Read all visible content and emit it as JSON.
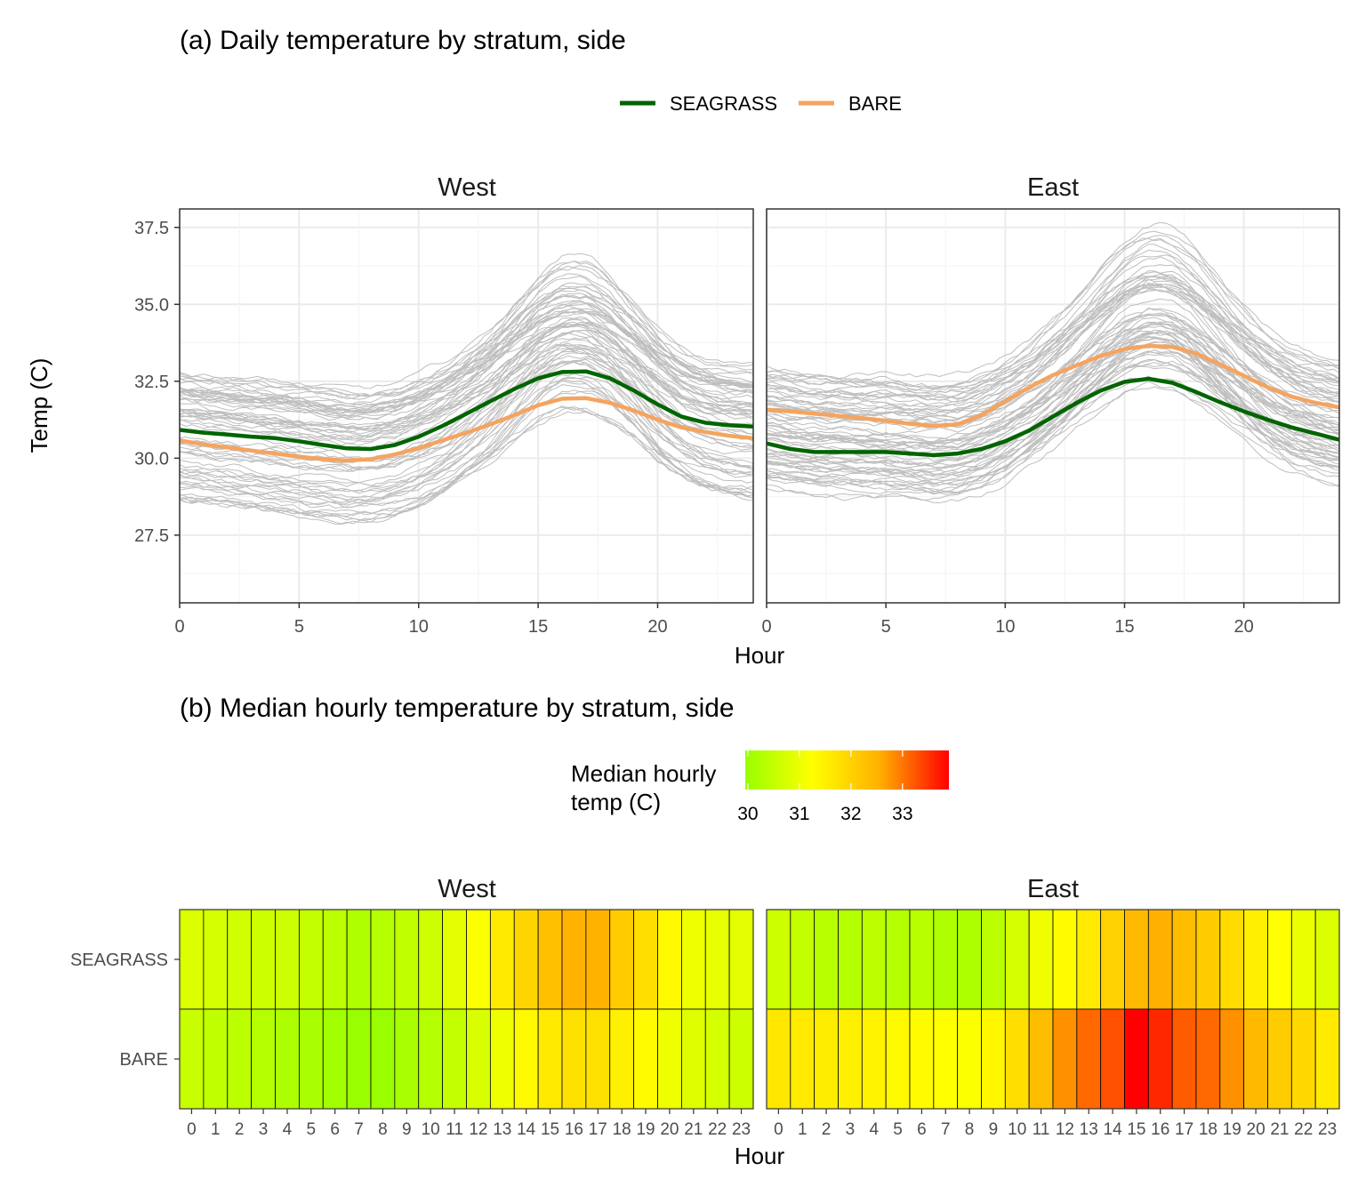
{
  "figure": {
    "panel_a_title": "(a) Daily temperature by stratum, side",
    "panel_b_title": "(b) Median hourly temperature by stratum, side"
  },
  "chart_data": [
    {
      "type": "line",
      "title": "(a) Daily temperature by stratum, side",
      "xlabel": "Hour",
      "ylabel": "Temp (C)",
      "xlim": [
        0,
        24
      ],
      "ylim": [
        25.3,
        38.1
      ],
      "x_ticks": [
        0,
        5,
        10,
        15,
        20
      ],
      "x_tick_labels": [
        "0",
        "5",
        "10",
        "15",
        "20"
      ],
      "y_ticks": [
        27.5,
        30.0,
        32.5,
        35.0,
        37.5
      ],
      "y_tick_labels": [
        "27.5",
        "30.0",
        "32.5",
        "35.0",
        "37.5"
      ],
      "grid": true,
      "legend_position": "top",
      "series_colors": {
        "SEAGRASS": "#006400",
        "BARE": "#F4A460"
      },
      "background_traces_color": "#BEBEBE",
      "legend": [
        "SEAGRASS",
        "BARE"
      ],
      "facets": [
        {
          "label": "West",
          "x": [
            0,
            1,
            2,
            3,
            4,
            5,
            6,
            7,
            8,
            9,
            10,
            11,
            12,
            13,
            14,
            15,
            16,
            17,
            18,
            19,
            20,
            21,
            22,
            23,
            24
          ],
          "series": [
            {
              "name": "SEAGRASS",
              "values": [
                30.92,
                30.83,
                30.77,
                30.7,
                30.65,
                30.55,
                30.43,
                30.32,
                30.3,
                30.43,
                30.7,
                31.05,
                31.45,
                31.85,
                32.25,
                32.6,
                32.8,
                32.82,
                32.6,
                32.2,
                31.75,
                31.35,
                31.15,
                31.07,
                31.03
              ]
            },
            {
              "name": "BARE",
              "values": [
                30.58,
                30.45,
                30.35,
                30.25,
                30.15,
                30.05,
                29.97,
                29.92,
                29.97,
                30.12,
                30.33,
                30.58,
                30.83,
                31.1,
                31.4,
                31.72,
                31.93,
                31.95,
                31.8,
                31.55,
                31.25,
                31.0,
                30.85,
                30.73,
                30.65
              ]
            }
          ]
        },
        {
          "label": "East",
          "x": [
            0,
            1,
            2,
            3,
            4,
            5,
            6,
            7,
            8,
            9,
            10,
            11,
            12,
            13,
            14,
            15,
            16,
            17,
            18,
            19,
            20,
            21,
            22,
            23,
            24
          ],
          "series": [
            {
              "name": "SEAGRASS",
              "values": [
                30.48,
                30.3,
                30.2,
                30.2,
                30.2,
                30.2,
                30.15,
                30.1,
                30.15,
                30.3,
                30.55,
                30.9,
                31.35,
                31.8,
                32.2,
                32.48,
                32.58,
                32.45,
                32.15,
                31.82,
                31.52,
                31.25,
                31.0,
                30.8,
                30.6
              ]
            },
            {
              "name": "BARE",
              "values": [
                31.58,
                31.52,
                31.45,
                31.38,
                31.3,
                31.22,
                31.12,
                31.05,
                31.1,
                31.4,
                31.85,
                32.3,
                32.7,
                33.02,
                33.32,
                33.55,
                33.65,
                33.62,
                33.4,
                33.05,
                32.68,
                32.3,
                32.0,
                31.8,
                31.65
              ]
            }
          ]
        }
      ]
    },
    {
      "type": "heatmap",
      "title": "(b) Median hourly temperature by stratum, side",
      "xlabel": "Hour",
      "ylabel": "",
      "x": [
        "0",
        "1",
        "2",
        "3",
        "4",
        "5",
        "6",
        "7",
        "8",
        "9",
        "10",
        "11",
        "12",
        "13",
        "14",
        "15",
        "16",
        "17",
        "18",
        "19",
        "20",
        "21",
        "22",
        "23"
      ],
      "y": [
        "SEAGRASS",
        "BARE"
      ],
      "colorbar": {
        "title": "Median hourly temp (C)",
        "ticks": [
          30,
          31,
          32,
          33
        ],
        "range": [
          29.95,
          33.9
        ],
        "colors": [
          "#99FF00",
          "#FFFF00",
          "#FFB000",
          "#FF0000"
        ]
      },
      "legend_position": "top",
      "facets": [
        {
          "label": "West",
          "rows": [
            {
              "name": "SEAGRASS",
              "values": [
                30.8,
                30.7,
                30.65,
                30.6,
                30.6,
                30.5,
                30.4,
                30.25,
                30.3,
                30.45,
                30.6,
                30.9,
                31.2,
                31.6,
                31.95,
                32.3,
                32.5,
                32.5,
                32.1,
                31.8,
                31.35,
                31.05,
                30.95,
                30.9
              ]
            },
            {
              "name": "BARE",
              "values": [
                30.55,
                30.45,
                30.4,
                30.3,
                30.2,
                30.15,
                30.05,
                29.95,
                29.95,
                30.15,
                30.3,
                30.5,
                30.75,
                31.05,
                31.35,
                31.6,
                31.75,
                31.75,
                31.5,
                31.3,
                31.05,
                30.85,
                30.7,
                30.6
              ]
            }
          ]
        },
        {
          "label": "East",
          "rows": [
            {
              "name": "SEAGRASS",
              "values": [
                30.6,
                30.5,
                30.35,
                30.3,
                30.4,
                30.3,
                30.35,
                30.25,
                30.2,
                30.4,
                30.7,
                31.05,
                31.3,
                31.6,
                32.0,
                32.4,
                32.55,
                32.35,
                32.1,
                31.85,
                31.5,
                31.25,
                31.0,
                30.8
              ]
            },
            {
              "name": "BARE",
              "values": [
                31.65,
                31.6,
                31.55,
                31.5,
                31.45,
                31.35,
                31.3,
                31.25,
                31.2,
                31.4,
                31.8,
                32.35,
                32.8,
                33.1,
                33.3,
                33.9,
                33.6,
                33.2,
                33.1,
                32.8,
                32.4,
                32.1,
                31.9,
                31.6
              ]
            }
          ]
        }
      ]
    }
  ]
}
